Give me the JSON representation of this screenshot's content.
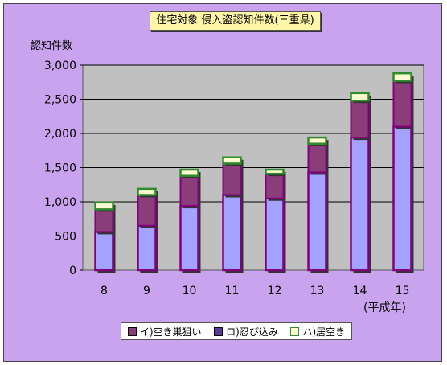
{
  "chart_data": {
    "type": "bar",
    "stacked": true,
    "title": "住宅対象 侵入盗認知件数(三重県)",
    "ylabel": "認知件数",
    "xlabel": "(平成年)",
    "categories": [
      "8",
      "9",
      "10",
      "11",
      "12",
      "13",
      "14",
      "15"
    ],
    "ylim": [
      0,
      3000
    ],
    "yticks": [
      "0",
      "500",
      "1,000",
      "1,500",
      "2,000",
      "2,500",
      "3,000"
    ],
    "ytick_values": [
      0,
      500,
      1000,
      1500,
      2000,
      2500,
      3000
    ],
    "grid": true,
    "legend_position": "bottom",
    "series": [
      {
        "name": "イ)空き巣狙い",
        "values": [
          560,
          650,
          940,
          1100,
          1050,
          1430,
          1940,
          2100
        ],
        "color": "#a3a3ff"
      },
      {
        "name": "ロ)忍び込み",
        "values": [
          330,
          450,
          440,
          460,
          360,
          420,
          540,
          670
        ],
        "color": "#8b3d7a"
      },
      {
        "name": "ハ)居空き",
        "values": [
          100,
          90,
          90,
          90,
          60,
          90,
          110,
          110
        ],
        "color": "#fffcd0"
      }
    ],
    "plot_background": "#c0c0c0",
    "bar_edge_color": "#800080"
  }
}
